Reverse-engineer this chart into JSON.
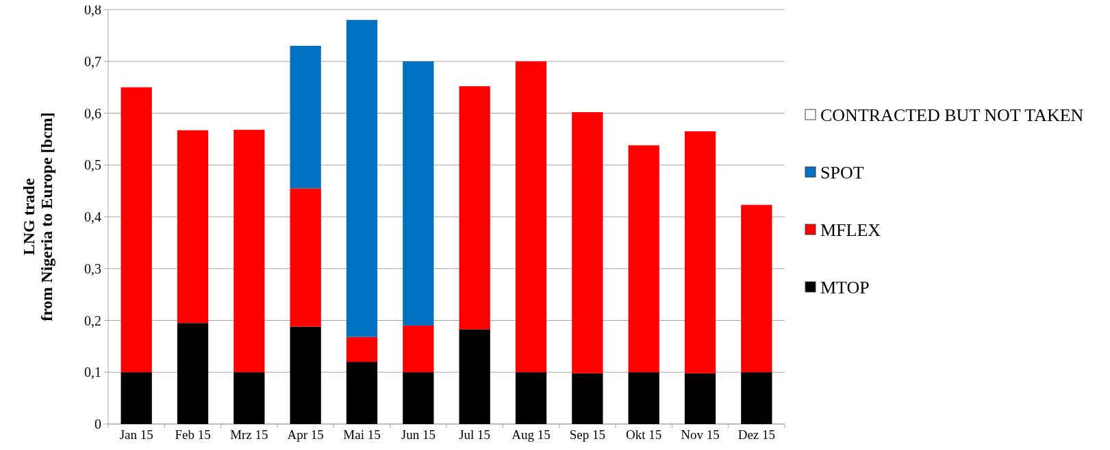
{
  "chart_data": {
    "type": "bar",
    "stacked": true,
    "ylabel": "LNG trade\nfrom Nigeria to Europe [bcm]",
    "categories": [
      "Jan 15",
      "Feb 15",
      "Mrz 15",
      "Apr 15",
      "Mai 15",
      "Jun 15",
      "Jul 15",
      "Aug 15",
      "Sep 15",
      "Okt 15",
      "Nov 15",
      "Dez 15"
    ],
    "series": [
      {
        "name": "MTOP",
        "color": "#000000",
        "values": [
          0.1,
          0.195,
          0.1,
          0.188,
          0.12,
          0.1,
          0.183,
          0.1,
          0.098,
          0.1,
          0.098,
          0.1
        ]
      },
      {
        "name": "MFLEX",
        "color": "#ff0000",
        "values": [
          0.55,
          0.372,
          0.468,
          0.267,
          0.048,
          0.09,
          0.469,
          0.6,
          0.504,
          0.438,
          0.467,
          0.323
        ]
      },
      {
        "name": "SPOT",
        "color": "#0070c0",
        "values": [
          0,
          0,
          0,
          0.275,
          0.612,
          0.51,
          0,
          0,
          0,
          0,
          0,
          0
        ]
      },
      {
        "name": "CONTRACTED BUT NOT TAKEN",
        "color": "#ffffff",
        "values": [
          0,
          0,
          0,
          0,
          0,
          0,
          0,
          0,
          0,
          0,
          0,
          0
        ]
      }
    ],
    "ylim": [
      0,
      0.8
    ],
    "yticks": [
      {
        "value": 0,
        "label": "0"
      },
      {
        "value": 0.1,
        "label": "0,1"
      },
      {
        "value": 0.2,
        "label": "0,2"
      },
      {
        "value": 0.3,
        "label": "0,3"
      },
      {
        "value": 0.4,
        "label": "0,4"
      },
      {
        "value": 0.5,
        "label": "0,5"
      },
      {
        "value": 0.6,
        "label": "0,6"
      },
      {
        "value": 0.7,
        "label": "0,7"
      },
      {
        "value": 0.8,
        "label": "0,8"
      }
    ],
    "grid": "y",
    "legend": "right"
  }
}
